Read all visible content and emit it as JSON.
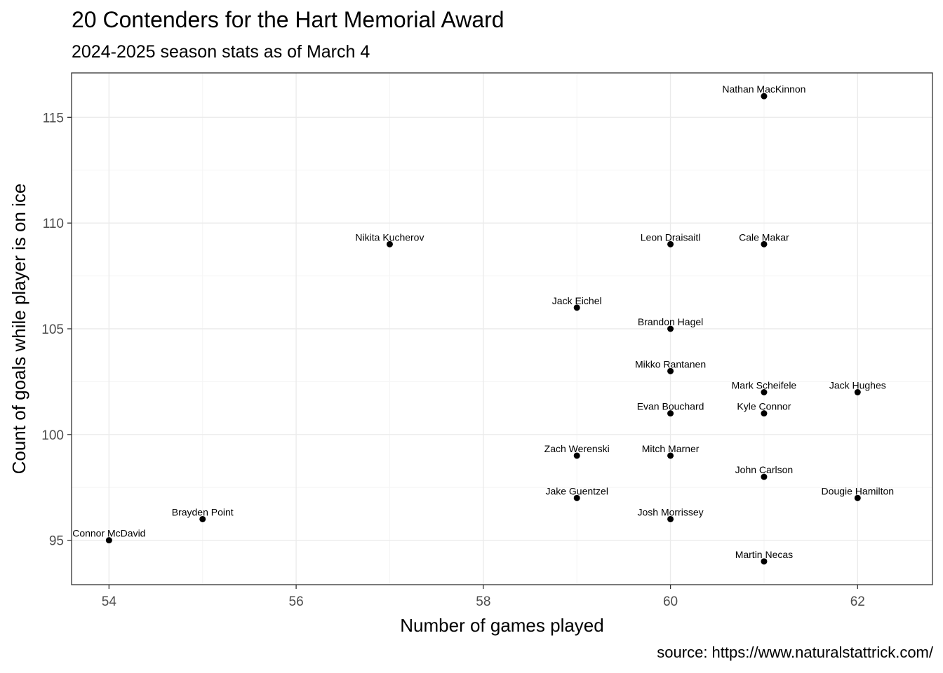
{
  "title": "20 Contenders for the Hart Memorial Award",
  "subtitle": "2024-2025 season stats as of March 4",
  "caption": "source: https://www.naturalstattrick.com/",
  "chart_data": {
    "type": "scatter",
    "xlabel": "Number of games played",
    "ylabel": "Count of goals while player is on ice",
    "xlim": [
      53.6,
      62.8
    ],
    "ylim": [
      92.9,
      117.1
    ],
    "xticks": [
      54,
      56,
      58,
      60,
      62
    ],
    "yticks": [
      95,
      100,
      105,
      110,
      115
    ],
    "grid": true,
    "legend": "none",
    "colors": {
      "point": "#000000",
      "grid_major": "#ebebeb",
      "grid_minor": "#f5f5f5",
      "panel_border": "#333333"
    },
    "points": [
      {
        "label": "Nathan MacKinnon",
        "x": 61,
        "y": 116
      },
      {
        "label": "Nikita Kucherov",
        "x": 57,
        "y": 109
      },
      {
        "label": "Leon Draisaitl",
        "x": 60,
        "y": 109
      },
      {
        "label": "Cale Makar",
        "x": 61,
        "y": 109
      },
      {
        "label": "Jack Eichel",
        "x": 59,
        "y": 106
      },
      {
        "label": "Brandon Hagel",
        "x": 60,
        "y": 105
      },
      {
        "label": "Mikko Rantanen",
        "x": 60,
        "y": 103
      },
      {
        "label": "Mark Scheifele",
        "x": 61,
        "y": 102
      },
      {
        "label": "Jack Hughes",
        "x": 62,
        "y": 102
      },
      {
        "label": "Evan Bouchard",
        "x": 60,
        "y": 101
      },
      {
        "label": "Kyle Connor",
        "x": 61,
        "y": 101
      },
      {
        "label": "Zach Werenski",
        "x": 59,
        "y": 99
      },
      {
        "label": "Mitch Marner",
        "x": 60,
        "y": 99
      },
      {
        "label": "John Carlson",
        "x": 61,
        "y": 98
      },
      {
        "label": "Jake Guentzel",
        "x": 59,
        "y": 97
      },
      {
        "label": "Dougie Hamilton",
        "x": 62,
        "y": 97
      },
      {
        "label": "Brayden Point",
        "x": 55,
        "y": 96
      },
      {
        "label": "Josh Morrissey",
        "x": 60,
        "y": 96
      },
      {
        "label": "Connor McDavid",
        "x": 54,
        "y": 95
      },
      {
        "label": "Martin Necas",
        "x": 61,
        "y": 94
      }
    ]
  }
}
